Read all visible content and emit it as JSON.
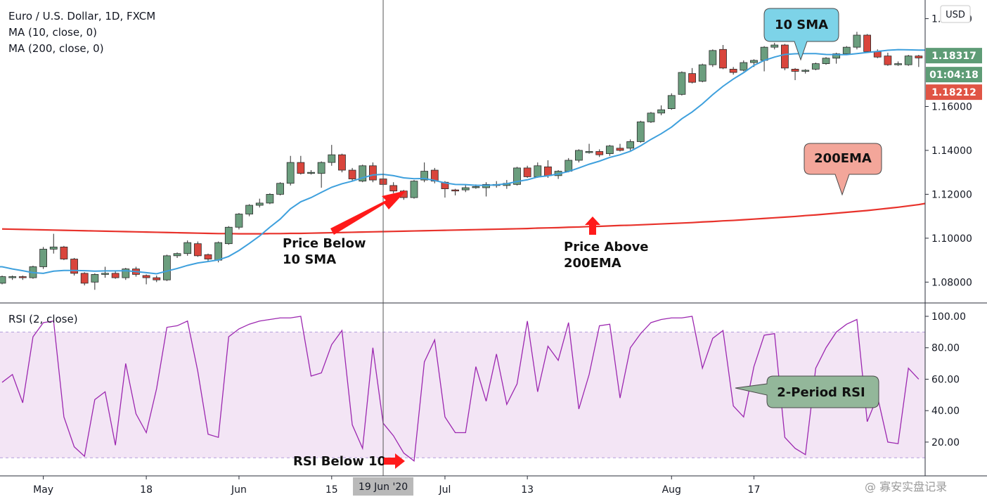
{
  "chart_data": [
    {
      "type": "candlestick",
      "title": "Euro / U.S. Dollar, 1D, FXCM",
      "legend": [
        "MA (10, close, 0)",
        "MA (200, close, 0)"
      ],
      "currency": "USD",
      "ylim": [
        1.0705,
        1.2085
      ],
      "y_ticks": [
        1.08,
        1.1,
        1.12,
        1.14,
        1.16,
        1.2
      ],
      "y_tick_labels": [
        "1.08000",
        "1.10000",
        "1.12000",
        "1.14000",
        "1.16000",
        "1.20000"
      ],
      "price_badges": [
        {
          "value": 1.18317,
          "label": "1.18317",
          "color": "#5e9c76"
        },
        {
          "value": 1.1804,
          "label": "01:04:18",
          "color": "#5e9c76"
        },
        {
          "value": 1.18212,
          "label": "1.18212",
          "color": "#e05545"
        }
      ],
      "colors": {
        "up": "#6b9e7e",
        "down": "#d9453c",
        "sma10": "#3ea0dd",
        "ema200": "#e8322b"
      },
      "candles": [
        [
          1.0795,
          1.0825,
          1.079,
          1.083
        ],
        [
          1.082,
          1.0825,
          1.081,
          1.083
        ],
        [
          1.0825,
          1.082,
          1.081,
          1.083
        ],
        [
          1.082,
          1.087,
          1.0815,
          1.0875
        ],
        [
          1.087,
          1.095,
          1.086,
          1.096
        ],
        [
          1.095,
          1.096,
          1.093,
          1.102
        ],
        [
          1.096,
          1.0905,
          1.09,
          1.0965
        ],
        [
          1.0905,
          1.084,
          1.083,
          1.091
        ],
        [
          1.084,
          1.0795,
          1.0785,
          1.0845
        ],
        [
          1.08,
          1.0835,
          1.0765,
          1.084
        ],
        [
          1.0835,
          1.084,
          1.082,
          1.087
        ],
        [
          1.084,
          1.082,
          1.0815,
          1.085
        ],
        [
          1.082,
          1.086,
          1.081,
          1.0865
        ],
        [
          1.086,
          1.0835,
          1.0825,
          1.087
        ],
        [
          1.083,
          1.082,
          1.079,
          1.0835
        ],
        [
          1.082,
          1.081,
          1.08,
          1.083
        ],
        [
          1.081,
          1.092,
          1.0805,
          1.0925
        ],
        [
          1.092,
          1.093,
          1.091,
          1.0935
        ],
        [
          1.093,
          1.098,
          1.092,
          1.099
        ],
        [
          1.0975,
          1.092,
          1.0915,
          1.0985
        ],
        [
          1.0925,
          1.0905,
          1.0895,
          1.093
        ],
        [
          1.09,
          1.098,
          1.089,
          1.0985
        ],
        [
          1.0975,
          1.105,
          1.097,
          1.1055
        ],
        [
          1.105,
          1.111,
          1.104,
          1.1115
        ],
        [
          1.111,
          1.115,
          1.11,
          1.1155
        ],
        [
          1.115,
          1.116,
          1.114,
          1.118
        ],
        [
          1.116,
          1.12,
          1.1155,
          1.1205
        ],
        [
          1.12,
          1.125,
          1.1195,
          1.1255
        ],
        [
          1.125,
          1.1345,
          1.124,
          1.1375
        ],
        [
          1.1345,
          1.1295,
          1.129,
          1.1375
        ],
        [
          1.1295,
          1.13,
          1.129,
          1.131
        ],
        [
          1.1295,
          1.1345,
          1.123,
          1.135
        ],
        [
          1.1345,
          1.138,
          1.133,
          1.1425
        ],
        [
          1.138,
          1.131,
          1.13,
          1.1385
        ],
        [
          1.131,
          1.127,
          1.126,
          1.132
        ],
        [
          1.126,
          1.133,
          1.1255,
          1.1335
        ],
        [
          1.133,
          1.1265,
          1.1255,
          1.1345
        ],
        [
          1.127,
          1.1245,
          1.1235,
          1.129
        ],
        [
          1.124,
          1.1215,
          1.1205,
          1.1255
        ],
        [
          1.1215,
          1.1185,
          1.1175,
          1.122
        ],
        [
          1.1185,
          1.126,
          1.118,
          1.1265
        ],
        [
          1.1265,
          1.1305,
          1.1255,
          1.1345
        ],
        [
          1.131,
          1.126,
          1.125,
          1.132
        ],
        [
          1.1255,
          1.1225,
          1.1185,
          1.126
        ],
        [
          1.122,
          1.1215,
          1.1195,
          1.1225
        ],
        [
          1.122,
          1.123,
          1.121,
          1.1245
        ],
        [
          1.1235,
          1.1235,
          1.1225,
          1.1245
        ],
        [
          1.123,
          1.1245,
          1.119,
          1.1255
        ],
        [
          1.124,
          1.1245,
          1.123,
          1.126
        ],
        [
          1.124,
          1.125,
          1.1225,
          1.1265
        ],
        [
          1.1245,
          1.132,
          1.124,
          1.1325
        ],
        [
          1.132,
          1.128,
          1.1275,
          1.133
        ],
        [
          1.128,
          1.133,
          1.1275,
          1.1345
        ],
        [
          1.1325,
          1.1285,
          1.1275,
          1.1355
        ],
        [
          1.1285,
          1.1305,
          1.127,
          1.131
        ],
        [
          1.1305,
          1.1355,
          1.13,
          1.1365
        ],
        [
          1.1355,
          1.14,
          1.1345,
          1.1405
        ],
        [
          1.139,
          1.1395,
          1.1385,
          1.143
        ],
        [
          1.1395,
          1.138,
          1.137,
          1.1405
        ],
        [
          1.1385,
          1.142,
          1.1375,
          1.1425
        ],
        [
          1.141,
          1.14,
          1.1395,
          1.143
        ],
        [
          1.141,
          1.144,
          1.14,
          1.145
        ],
        [
          1.144,
          1.153,
          1.1435,
          1.1535
        ],
        [
          1.153,
          1.157,
          1.1525,
          1.1575
        ],
        [
          1.157,
          1.1585,
          1.156,
          1.1605
        ],
        [
          1.159,
          1.165,
          1.1585,
          1.166
        ],
        [
          1.1655,
          1.1755,
          1.165,
          1.176
        ],
        [
          1.175,
          1.171,
          1.1705,
          1.1775
        ],
        [
          1.1715,
          1.179,
          1.171,
          1.1795
        ],
        [
          1.179,
          1.1855,
          1.178,
          1.186
        ],
        [
          1.186,
          1.1775,
          1.177,
          1.188
        ],
        [
          1.177,
          1.1755,
          1.1745,
          1.178
        ],
        [
          1.1765,
          1.18,
          1.176,
          1.181
        ],
        [
          1.18,
          1.181,
          1.178,
          1.1815
        ],
        [
          1.181,
          1.187,
          1.176,
          1.1875
        ],
        [
          1.187,
          1.188,
          1.186,
          1.189
        ],
        [
          1.188,
          1.1775,
          1.1765,
          1.1885
        ],
        [
          1.177,
          1.176,
          1.172,
          1.1775
        ],
        [
          1.176,
          1.1765,
          1.175,
          1.177
        ],
        [
          1.177,
          1.1795,
          1.1765,
          1.18
        ],
        [
          1.1795,
          1.182,
          1.179,
          1.1825
        ],
        [
          1.182,
          1.184,
          1.1795,
          1.1845
        ],
        [
          1.184,
          1.187,
          1.1835,
          1.1875
        ],
        [
          1.187,
          1.1925,
          1.186,
          1.194
        ],
        [
          1.1925,
          1.185,
          1.1845,
          1.193
        ],
        [
          1.185,
          1.1825,
          1.182,
          1.186
        ],
        [
          1.183,
          1.179,
          1.1785,
          1.1845
        ],
        [
          1.179,
          1.1795,
          1.1785,
          1.1805
        ],
        [
          1.179,
          1.183,
          1.1785,
          1.1835
        ],
        [
          1.183,
          1.1821,
          1.178,
          1.1835
        ]
      ],
      "sma10": [
        1.087,
        1.086,
        1.0852,
        1.0843,
        1.084,
        1.085,
        1.0853,
        1.0853,
        1.0852,
        1.085,
        1.0851,
        1.0851,
        1.0852,
        1.0848,
        1.0843,
        1.0838,
        1.085,
        1.0862,
        1.0876,
        1.0887,
        1.0894,
        1.0901,
        1.0917,
        1.0944,
        1.0976,
        1.101,
        1.105,
        1.1087,
        1.1134,
        1.1166,
        1.1185,
        1.1209,
        1.1232,
        1.1248,
        1.126,
        1.1275,
        1.1288,
        1.1291,
        1.1285,
        1.1275,
        1.1271,
        1.1272,
        1.1263,
        1.1252,
        1.1245,
        1.1244,
        1.1241,
        1.1241,
        1.1243,
        1.1248,
        1.1258,
        1.1266,
        1.1279,
        1.1284,
        1.1293,
        1.1304,
        1.132,
        1.1337,
        1.1351,
        1.1368,
        1.138,
        1.1396,
        1.1421,
        1.145,
        1.1476,
        1.1506,
        1.1544,
        1.1575,
        1.1612,
        1.1654,
        1.1692,
        1.1725,
        1.1754,
        1.1787,
        1.181,
        1.1825,
        1.1837,
        1.184,
        1.1841,
        1.1841,
        1.1837,
        1.1836,
        1.1836,
        1.1841,
        1.1846,
        1.1851,
        1.1856,
        1.1859,
        1.1858,
        1.1857
      ],
      "ema200": [
        1.1042,
        1.1041,
        1.104,
        1.1039,
        1.1038,
        1.1037,
        1.1036,
        1.1035,
        1.1034,
        1.1033,
        1.1032,
        1.1031,
        1.103,
        1.1029,
        1.1028,
        1.1027,
        1.1026,
        1.1025,
        1.1024,
        1.1023,
        1.1022,
        1.1021,
        1.1021,
        1.102,
        1.102,
        1.102,
        1.1021,
        1.1021,
        1.1022,
        1.1022,
        1.1023,
        1.1024,
        1.1025,
        1.1026,
        1.1027,
        1.1028,
        1.1029,
        1.103,
        1.1031,
        1.1032,
        1.1033,
        1.1034,
        1.1035,
        1.1036,
        1.1037,
        1.1038,
        1.1039,
        1.104,
        1.1041,
        1.1042,
        1.1043,
        1.1044,
        1.1046,
        1.1047,
        1.1048,
        1.105,
        1.1051,
        1.1053,
        1.1054,
        1.1056,
        1.1058,
        1.1059,
        1.1061,
        1.1063,
        1.1065,
        1.1067,
        1.1069,
        1.1071,
        1.1074,
        1.1076,
        1.1079,
        1.1081,
        1.1084,
        1.1087,
        1.109,
        1.1093,
        1.1096,
        1.1099,
        1.1103,
        1.1106,
        1.111,
        1.1114,
        1.1118,
        1.1122,
        1.1126,
        1.1131,
        1.1136,
        1.1141,
        1.1147,
        1.1153
      ],
      "dates": [
        {
          "label": "May",
          "index": 4
        },
        {
          "label": "18",
          "index": 14
        },
        {
          "label": "Jun",
          "index": 23
        },
        {
          "label": "15",
          "index": 32
        },
        {
          "label": "Jul",
          "index": 43
        },
        {
          "label": "13",
          "index": 51
        },
        {
          "label": "Aug",
          "index": 65
        },
        {
          "label": "17",
          "index": 73
        }
      ],
      "crosshair": {
        "index": 37,
        "label": "19 Jun '20"
      }
    },
    {
      "type": "line",
      "title": "RSI (2, close)",
      "ylim": [
        -1.5,
        108.5
      ],
      "y_ticks": [
        20,
        40,
        60,
        80,
        100
      ],
      "y_tick_labels": [
        "20.00",
        "40.00",
        "60.00",
        "80.00",
        "100.00"
      ],
      "band": [
        10,
        90
      ],
      "colors": {
        "line": "#9c27b0",
        "band": "#f3e5f5"
      },
      "values": [
        58,
        63,
        45,
        87,
        96,
        97,
        36,
        17,
        11,
        47,
        52,
        18,
        70,
        38,
        26,
        54,
        93,
        94,
        97,
        65,
        25,
        23,
        87,
        92,
        95,
        97,
        98,
        99,
        99,
        100,
        62,
        64,
        82,
        91,
        31,
        16,
        80,
        32,
        24,
        13,
        8,
        71,
        85,
        36,
        26,
        26,
        68,
        46,
        76,
        44,
        57,
        97,
        52,
        81,
        72,
        96,
        41,
        63,
        94,
        95,
        48,
        80,
        89,
        96,
        98,
        99,
        99,
        100,
        67,
        86,
        91,
        43,
        36,
        68,
        88,
        89,
        23,
        16,
        12,
        67,
        80,
        90,
        95,
        98,
        33,
        49,
        20,
        19,
        67,
        60
      ]
    }
  ],
  "annotations": {
    "price_below_sma_line1": "Price Below",
    "price_below_sma_line2": "10 SMA",
    "price_above_ema_line1": "Price Above",
    "price_above_ema_line2": "200EMA",
    "rsi_below": "RSI Below 10",
    "callout_sma": "10 SMA",
    "callout_ema": "200EMA",
    "callout_rsi": "2-Period RSI",
    "watermark": "@ 寡安实盘记录"
  }
}
